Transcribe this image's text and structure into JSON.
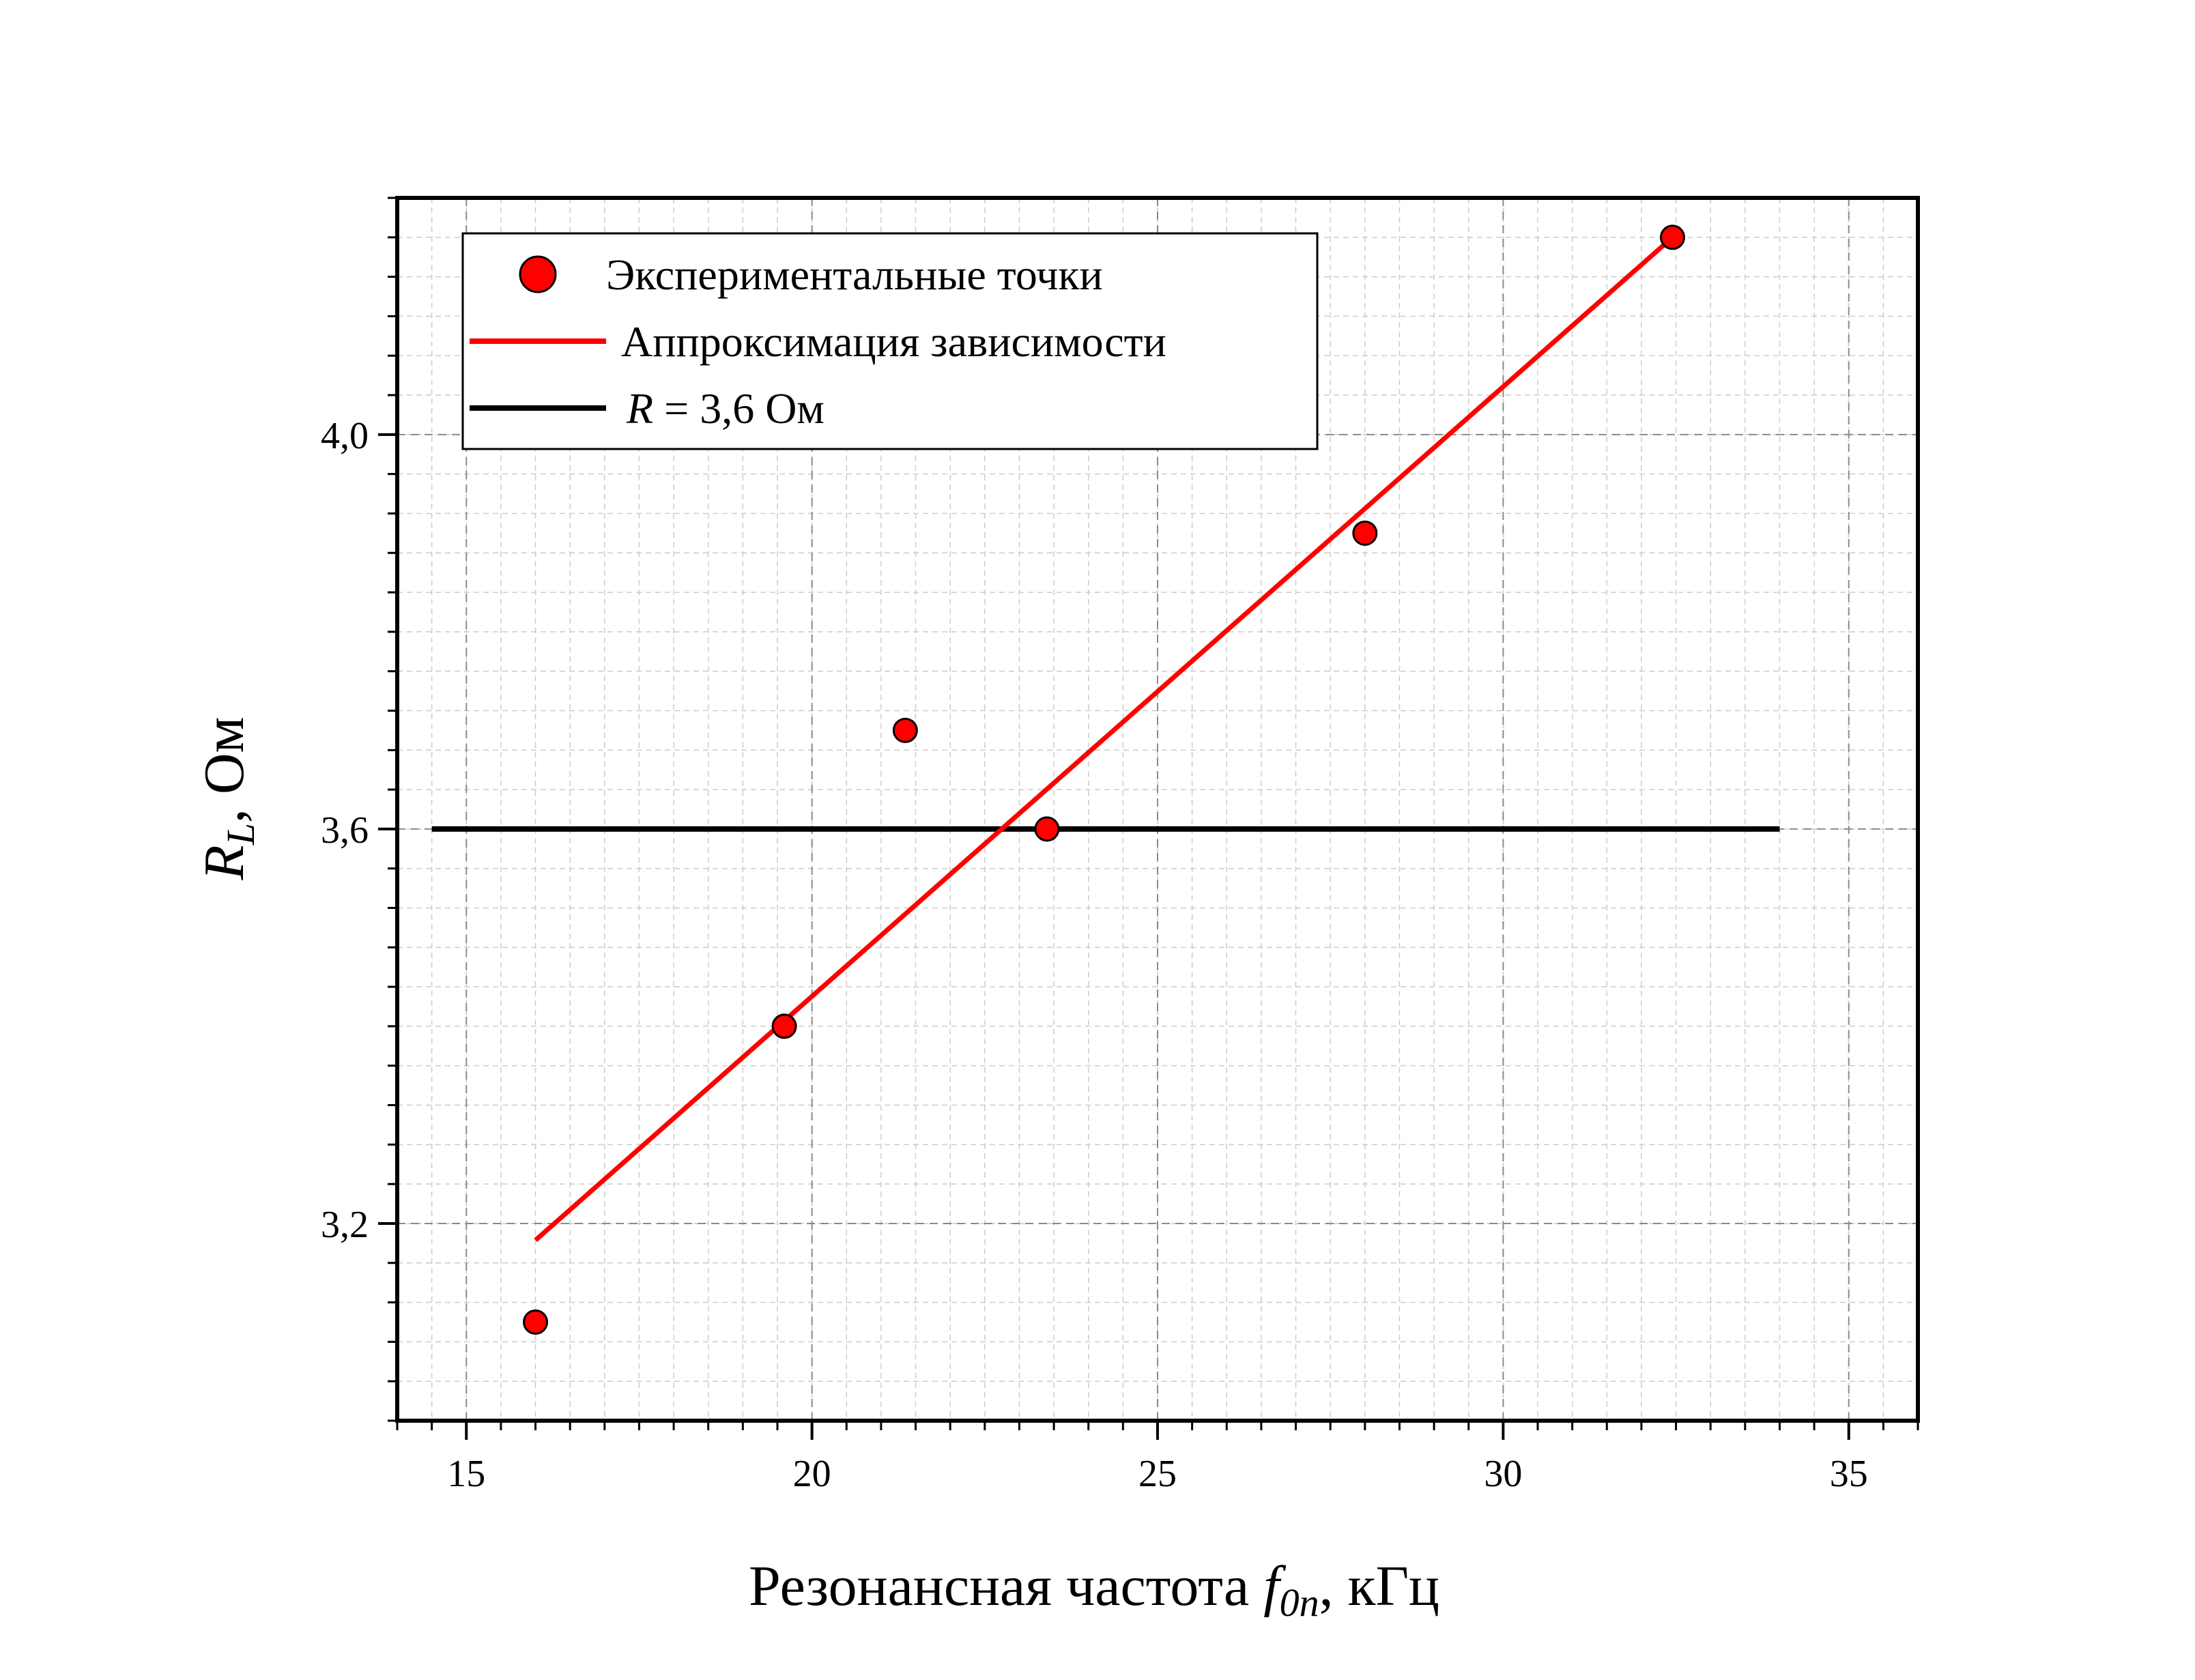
{
  "chart_data": {
    "type": "scatter",
    "xlabel": {
      "prefix": "Резонансная частота ",
      "var": "f",
      "sub": "0n",
      "suffix": ", кГц"
    },
    "ylabel": {
      "var": "R",
      "sub": "L",
      "suffix": ", Ом"
    },
    "xlim": [
      14,
      36
    ],
    "ylim": [
      3.0,
      4.24
    ],
    "x_major_ticks": [
      15,
      20,
      25,
      30,
      35
    ],
    "x_tick_labels": [
      "15",
      "20",
      "25",
      "30",
      "35"
    ],
    "y_major_ticks": [
      3.2,
      3.6,
      4.0
    ],
    "y_tick_labels": [
      "3,2",
      "3,6",
      "4,0"
    ],
    "grid": true,
    "legend_position": "top-left",
    "series": [
      {
        "name": "Экспериментальные точки",
        "kind": "scatter",
        "color": "#ff0000",
        "x": [
          16.0,
          19.6,
          21.35,
          23.4,
          28.0,
          32.45
        ],
        "y": [
          3.1,
          3.4,
          3.7,
          3.6,
          3.9,
          4.2
        ]
      },
      {
        "name": "Аппроксимация зависимости",
        "kind": "line",
        "color": "#ff0000",
        "x": [
          16.0,
          32.45
        ],
        "y": [
          3.183,
          4.2
        ]
      },
      {
        "name_parts": {
          "var": "R",
          "rest": " = 3,6 Ом"
        },
        "kind": "hline",
        "color": "#000000",
        "x": [
          14.5,
          34.0
        ],
        "y": [
          3.6,
          3.6
        ]
      }
    ]
  }
}
